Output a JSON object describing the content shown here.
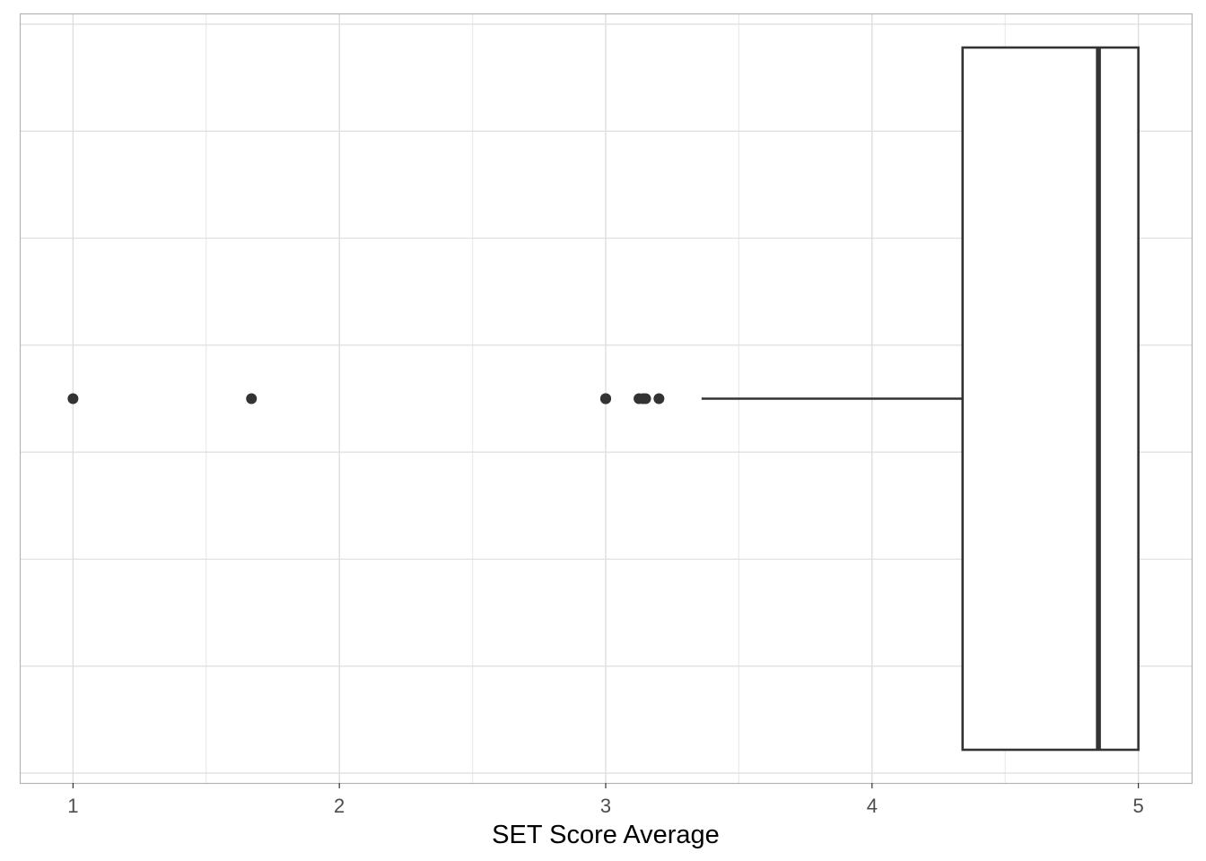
{
  "chart_data": {
    "type": "boxplot",
    "orientation": "horizontal",
    "title": "",
    "xlabel": "SET Score Average",
    "ylabel": "",
    "xlim": [
      0.8,
      5.2
    ],
    "x_ticks": [
      1,
      2,
      3,
      4,
      5
    ],
    "x_tick_labels": [
      "1",
      "2",
      "3",
      "4",
      "5"
    ],
    "x_minor_ticks": [
      1.5,
      2.5,
      3.5,
      4.5
    ],
    "y_gridlines": 8,
    "grid": true,
    "box": {
      "whisker_low": 3.36,
      "q1": 4.34,
      "median": 4.85,
      "q3": 5.0,
      "whisker_high": 5.0
    },
    "outliers": [
      1.0,
      1.67,
      3.0,
      3.0,
      3.0,
      3.125,
      3.14,
      3.15,
      3.2
    ],
    "colors": {
      "box_line": "#333333",
      "grid_major": "#dedede",
      "grid_minor": "#ebebeb",
      "panel_border": "#b3b3b3",
      "points": "#333333"
    }
  }
}
